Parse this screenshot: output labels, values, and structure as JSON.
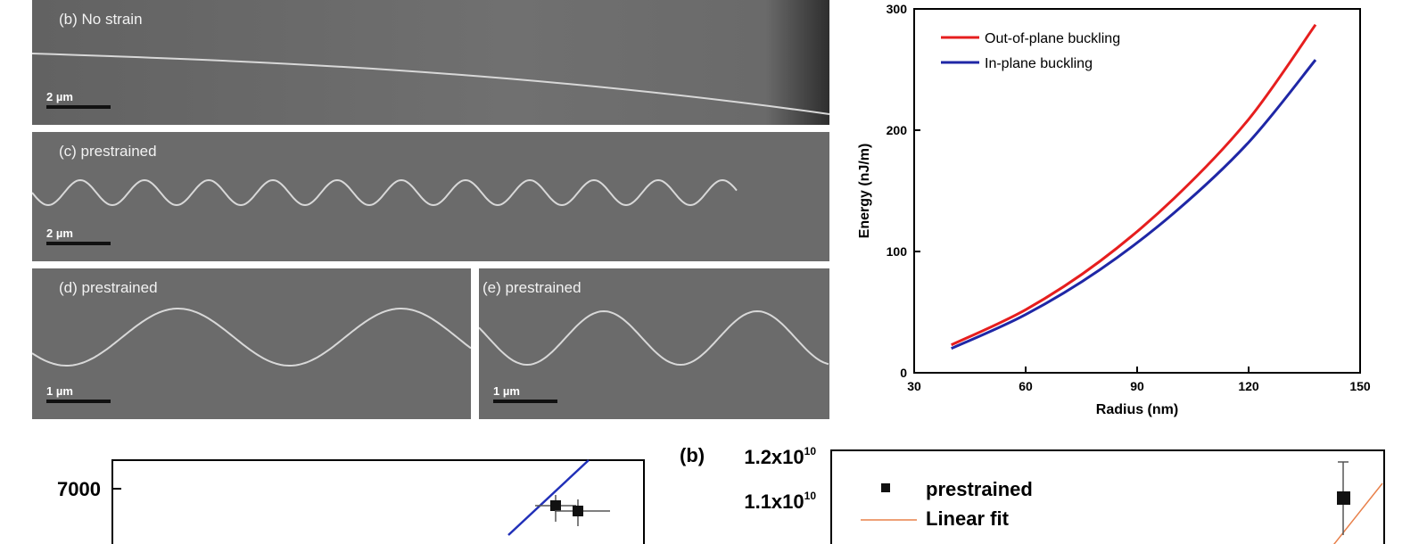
{
  "sem": {
    "b": {
      "label": "(b)  No strain",
      "scale": "2 µm"
    },
    "c": {
      "label": "(c)  prestrained",
      "scale": "2 µm"
    },
    "d": {
      "label": "(d)  prestrained",
      "scale": "1 µm"
    },
    "e": {
      "label": "(e)  prestrained",
      "scale": "1 µm"
    }
  },
  "chart_data": [
    {
      "type": "line",
      "xlabel": "Radius (nm)",
      "ylabel": "Energy (nJ/m)",
      "xlim": [
        30,
        150
      ],
      "ylim": [
        0,
        300
      ],
      "xticks": [
        "30",
        "60",
        "90",
        "120",
        "150"
      ],
      "yticks": [
        "0",
        "100",
        "200",
        "300"
      ],
      "legend_position": "top-left",
      "series": [
        {
          "name": "Out-of-plane buckling",
          "color": "#e61e1e",
          "x": [
            40,
            60,
            80,
            100,
            120,
            138
          ],
          "y": [
            23,
            52,
            92,
            144,
            209,
            287
          ]
        },
        {
          "name": "In-plane buckling",
          "color": "#1f27a6",
          "x": [
            40,
            60,
            80,
            100,
            120,
            138
          ],
          "y": [
            20,
            48,
            85,
            132,
            190,
            258
          ]
        }
      ]
    },
    {
      "type": "scatter",
      "yticks": [
        "7000"
      ],
      "partially_visible": true,
      "series": [
        {
          "x": [
            0.82,
            0.86
          ],
          "y": [
            7500,
            7450
          ],
          "marker": "square"
        }
      ]
    },
    {
      "type": "scatter",
      "panel_label": "(b)",
      "yticks": [
        "1.2x10",
        "1.1x10"
      ],
      "ytick_exponent": "10",
      "legend": [
        "prestrained",
        "Linear fit"
      ],
      "series": [
        {
          "name": "prestrained",
          "marker": "square",
          "x": [
            0.95
          ],
          "y": [
            11000000000
          ]
        },
        {
          "name": "Linear fit",
          "color": "#e8804a"
        }
      ]
    }
  ]
}
